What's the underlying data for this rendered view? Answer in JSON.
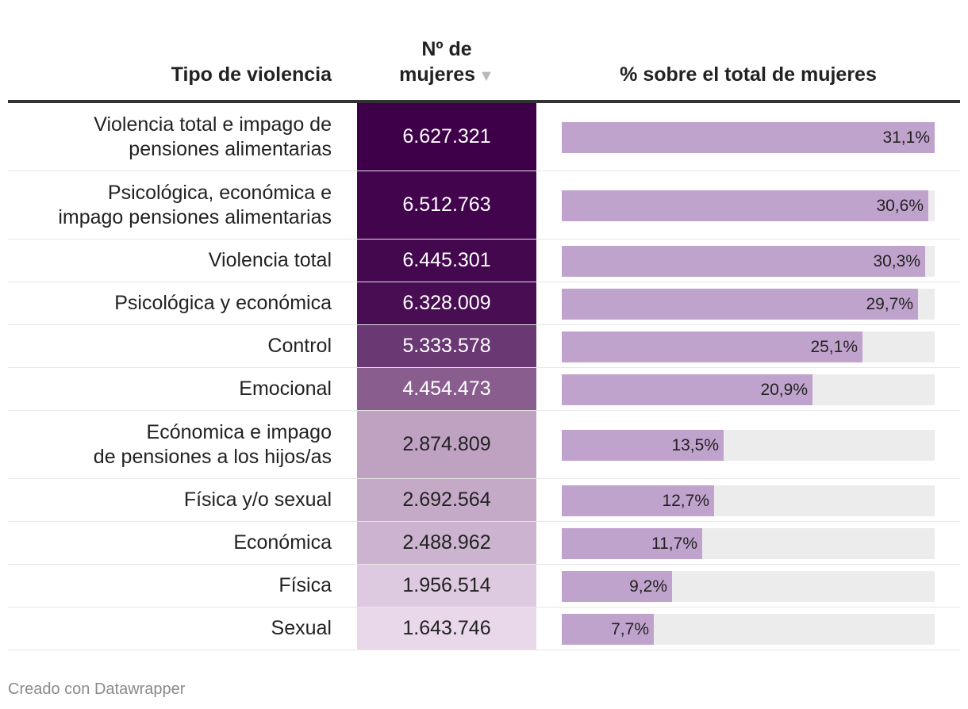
{
  "headers": {
    "type": "Tipo de violencia",
    "num_line1": "Nº de",
    "num_line2": "mujeres",
    "sort_icon": "sort-down-icon",
    "pct": "% sobre el total de mujeres"
  },
  "footer": "Creado con Datawrapper",
  "colors": {
    "scale_dark": "#3e0049",
    "scale_light": "#e9d7ea",
    "bar": "#c0a3cd",
    "track": "#ececec"
  },
  "chart_data": {
    "type": "table",
    "title": "",
    "columns": [
      "Tipo de violencia",
      "Nº de mujeres",
      "% sobre el total de mujeres"
    ],
    "pct_range": [
      0,
      31.1
    ],
    "rows": [
      {
        "label": "Violencia total e impago de\npensiones alimentarias",
        "value": 6627321,
        "value_text": "6.627.321",
        "pct": 31.1,
        "pct_text": "31,1%"
      },
      {
        "label": "Psicológica, económica e\nimpago pensiones alimentarias",
        "value": 6512763,
        "value_text": "6.512.763",
        "pct": 30.6,
        "pct_text": "30,6%"
      },
      {
        "label": "Violencia total",
        "value": 6445301,
        "value_text": "6.445.301",
        "pct": 30.3,
        "pct_text": "30,3%"
      },
      {
        "label": "Psicológica y económica",
        "value": 6328009,
        "value_text": "6.328.009",
        "pct": 29.7,
        "pct_text": "29,7%"
      },
      {
        "label": "Control",
        "value": 5333578,
        "value_text": "5.333.578",
        "pct": 25.1,
        "pct_text": "25,1%"
      },
      {
        "label": "Emocional",
        "value": 4454473,
        "value_text": "4.454.473",
        "pct": 20.9,
        "pct_text": "20,9%"
      },
      {
        "label": "Ecónomica e impago\nde pensiones a los hijos/as",
        "value": 2874809,
        "value_text": "2.874.809",
        "pct": 13.5,
        "pct_text": "13,5%"
      },
      {
        "label": "Física y/o sexual",
        "value": 2692564,
        "value_text": "2.692.564",
        "pct": 12.7,
        "pct_text": "12,7%"
      },
      {
        "label": "Económica",
        "value": 2488962,
        "value_text": "2.488.962",
        "pct": 11.7,
        "pct_text": "11,7%"
      },
      {
        "label": "Física",
        "value": 1956514,
        "value_text": "1.956.514",
        "pct": 9.2,
        "pct_text": "9,2%"
      },
      {
        "label": "Sexual",
        "value": 1643746,
        "value_text": "1.643.746",
        "pct": 7.7,
        "pct_text": "7,7%"
      }
    ]
  }
}
